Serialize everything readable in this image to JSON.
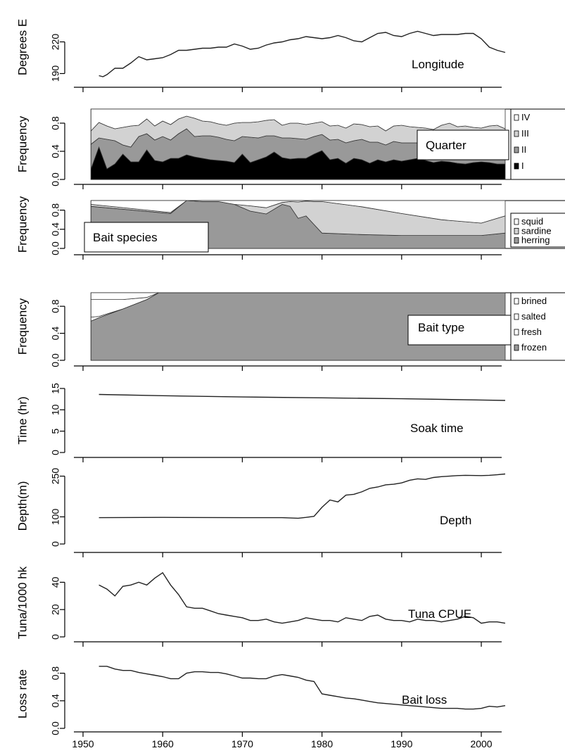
{
  "figure": {
    "x_ticks": [
      "1950",
      "1960",
      "1970",
      "1980",
      "1990",
      "2000"
    ]
  },
  "chart_data": [
    {
      "type": "line",
      "ylabel": "Degrees E",
      "inner_label": "Longitude",
      "ylim": [
        185,
        245
      ],
      "yticks": [
        190,
        220
      ],
      "ytick_labels": [
        "190",
        "220"
      ],
      "x": [
        1952,
        1952.5,
        1953,
        1954,
        1955,
        1956,
        1957,
        1958,
        1959,
        1960,
        1961,
        1962,
        1963,
        1964,
        1965,
        1966,
        1967,
        1968,
        1969,
        1970,
        1971,
        1972,
        1973,
        1974,
        1975,
        1976,
        1977,
        1978,
        1979,
        1980,
        1981,
        1982,
        1983,
        1984,
        1985,
        1986,
        1987,
        1988,
        1989,
        1990,
        1991,
        1992,
        1993,
        1994,
        1995,
        1996,
        1997,
        1998,
        1999,
        2000,
        2001,
        2002,
        2003
      ],
      "values": [
        188,
        187,
        189,
        195,
        195,
        200,
        206,
        203,
        204,
        205,
        208,
        212,
        212,
        213,
        214,
        214,
        215,
        215,
        218,
        216,
        213,
        214,
        217,
        219,
        220,
        222,
        223,
        225,
        224,
        223,
        224,
        226,
        224,
        221,
        220,
        224,
        228,
        229,
        226,
        225,
        228,
        230,
        228,
        226,
        227,
        227,
        227,
        228,
        228,
        223,
        215,
        212,
        210
      ]
    },
    {
      "type": "area",
      "stacked": true,
      "ylabel": "Frequency",
      "inner_label": "Quarter",
      "ylim": [
        0,
        1
      ],
      "yticks": [
        0,
        0.4,
        0.8
      ],
      "ytick_labels": [
        "0.0",
        "0.4",
        "0.8"
      ],
      "legend": [
        "IV",
        "III",
        "II",
        "I"
      ],
      "colors": [
        "#ffffff",
        "#d2d2d2",
        "#999999",
        "#000000"
      ],
      "x": [
        1951,
        1952,
        1953,
        1954,
        1955,
        1956,
        1957,
        1958,
        1959,
        1960,
        1961,
        1962,
        1963,
        1964,
        1965,
        1966,
        1967,
        1968,
        1969,
        1970,
        1971,
        1972,
        1973,
        1974,
        1975,
        1976,
        1977,
        1978,
        1979,
        1980,
        1981,
        1982,
        1983,
        1984,
        1985,
        1986,
        1987,
        1988,
        1989,
        1990,
        1991,
        1992,
        1993,
        1994,
        1995,
        1996,
        1997,
        1998,
        1999,
        2000,
        2001,
        2002,
        2003
      ],
      "series": [
        {
          "name": "I",
          "values": [
            0.15,
            0.46,
            0.15,
            0.22,
            0.36,
            0.25,
            0.25,
            0.42,
            0.27,
            0.25,
            0.3,
            0.3,
            0.35,
            0.32,
            0.3,
            0.28,
            0.27,
            0.26,
            0.24,
            0.36,
            0.24,
            0.28,
            0.32,
            0.39,
            0.31,
            0.29,
            0.3,
            0.3,
            0.36,
            0.41,
            0.28,
            0.3,
            0.23,
            0.3,
            0.28,
            0.23,
            0.28,
            0.25,
            0.28,
            0.26,
            0.28,
            0.3,
            0.27,
            0.24,
            0.26,
            0.25,
            0.23,
            0.22,
            0.24,
            0.25,
            0.24,
            0.22,
            0.22
          ]
        },
        {
          "name": "II",
          "values": [
            0.35,
            0.13,
            0.42,
            0.33,
            0.13,
            0.21,
            0.36,
            0.23,
            0.29,
            0.36,
            0.26,
            0.35,
            0.37,
            0.29,
            0.32,
            0.34,
            0.33,
            0.31,
            0.31,
            0.25,
            0.36,
            0.31,
            0.3,
            0.23,
            0.28,
            0.3,
            0.28,
            0.27,
            0.25,
            0.23,
            0.28,
            0.27,
            0.29,
            0.25,
            0.29,
            0.3,
            0.25,
            0.24,
            0.26,
            0.26,
            0.24,
            0.22,
            0.22,
            0.26,
            0.27,
            0.3,
            0.3,
            0.32,
            0.3,
            0.28,
            0.26,
            0.29,
            0.28
          ]
        },
        {
          "name": "III",
          "values": [
            0.19,
            0.22,
            0.19,
            0.17,
            0.25,
            0.3,
            0.16,
            0.21,
            0.2,
            0.22,
            0.22,
            0.21,
            0.18,
            0.26,
            0.21,
            0.2,
            0.19,
            0.2,
            0.25,
            0.2,
            0.21,
            0.23,
            0.22,
            0.23,
            0.18,
            0.21,
            0.22,
            0.21,
            0.19,
            0.18,
            0.2,
            0.2,
            0.21,
            0.24,
            0.21,
            0.22,
            0.23,
            0.2,
            0.22,
            0.25,
            0.23,
            0.22,
            0.24,
            0.21,
            0.24,
            0.25,
            0.22,
            0.22,
            0.2,
            0.2,
            0.26,
            0.26,
            0.22
          ]
        },
        {
          "name": "IV",
          "values": [
            0.31,
            0.19,
            0.24,
            0.28,
            0.26,
            0.24,
            0.23,
            0.14,
            0.24,
            0.17,
            0.22,
            0.14,
            0.1,
            0.13,
            0.17,
            0.18,
            0.21,
            0.23,
            0.2,
            0.19,
            0.19,
            0.18,
            0.16,
            0.15,
            0.23,
            0.2,
            0.2,
            0.22,
            0.2,
            0.18,
            0.24,
            0.23,
            0.27,
            0.21,
            0.22,
            0.25,
            0.24,
            0.31,
            0.24,
            0.23,
            0.25,
            0.26,
            0.27,
            0.29,
            0.23,
            0.2,
            0.25,
            0.24,
            0.26,
            0.27,
            0.24,
            0.23,
            0.28
          ]
        }
      ]
    },
    {
      "type": "area",
      "stacked": true,
      "ylabel": "Frequency",
      "inner_label": "Bait species",
      "ylim": [
        0,
        1
      ],
      "yticks": [
        0,
        0.4,
        0.8
      ],
      "ytick_labels": [
        "0.0",
        "0.4",
        "0.8"
      ],
      "legend": [
        "squid",
        "sardine",
        "herring"
      ],
      "colors": [
        "#ffffff",
        "#d2d2d2",
        "#999999"
      ],
      "x": [
        1951,
        1961,
        1963,
        1965,
        1967,
        1969,
        1971,
        1973,
        1975,
        1976,
        1977,
        1978,
        1979,
        1980,
        1985,
        1990,
        1995,
        2000,
        2003
      ],
      "series": [
        {
          "name": "herring",
          "values": [
            0.88,
            0.73,
            1.0,
            0.98,
            0.98,
            0.92,
            0.78,
            0.72,
            0.92,
            0.88,
            0.63,
            0.68,
            0.5,
            0.32,
            0.29,
            0.27,
            0.27,
            0.27,
            0.32
          ]
        },
        {
          "name": "sardine",
          "values": [
            0.04,
            0.02,
            0.0,
            0.0,
            0.0,
            0.0,
            0.11,
            0.13,
            0.04,
            0.1,
            0.34,
            0.31,
            0.48,
            0.66,
            0.58,
            0.46,
            0.33,
            0.26,
            0.36
          ]
        },
        {
          "name": "squid",
          "values": [
            0.08,
            0.25,
            0.0,
            0.02,
            0.02,
            0.08,
            0.11,
            0.15,
            0.04,
            0.02,
            0.03,
            0.01,
            0.02,
            0.02,
            0.13,
            0.27,
            0.4,
            0.47,
            0.32
          ]
        }
      ]
    },
    {
      "type": "area",
      "stacked": true,
      "ylabel": "Frequency",
      "inner_label": "Bait type",
      "ylim": [
        0,
        1
      ],
      "yticks": [
        0,
        0.4,
        0.8
      ],
      "ytick_labels": [
        "0.0",
        "0.4",
        "0.8"
      ],
      "legend": [
        "brined",
        "salted",
        "fresh",
        "frozen"
      ],
      "colors": [
        "#ffffff",
        "#ffffff",
        "#ffffff",
        "#999999"
      ],
      "x": [
        1951,
        1952,
        1955,
        1958,
        1959.5,
        1960,
        1970,
        1980,
        1990,
        2000,
        2003
      ],
      "series": [
        {
          "name": "frozen",
          "values": [
            0.58,
            0.63,
            0.76,
            0.9,
            1.0,
            1.0,
            1.0,
            1.0,
            1.0,
            1.0,
            1.0
          ]
        },
        {
          "name": "fresh",
          "values": [
            0.06,
            0.02,
            0.0,
            0.0,
            0.0,
            0.0,
            0.0,
            0.0,
            0.0,
            0.0,
            0.0
          ]
        },
        {
          "name": "salted",
          "values": [
            0.26,
            0.25,
            0.14,
            0.03,
            0.0,
            0.0,
            0.0,
            0.0,
            0.0,
            0.0,
            0.0
          ]
        },
        {
          "name": "brined",
          "values": [
            0.1,
            0.1,
            0.1,
            0.07,
            0.0,
            0.0,
            0.0,
            0.0,
            0.0,
            0.0,
            0.0
          ]
        }
      ]
    },
    {
      "type": "line",
      "ylabel": "Time (hr)",
      "inner_label": "Soak time",
      "ylim": [
        0,
        15
      ],
      "yticks": [
        0,
        5,
        10,
        15
      ],
      "ytick_labels": [
        "0",
        "5",
        "10",
        "15"
      ],
      "x": [
        1952,
        1960,
        1970,
        1980,
        1990,
        2000,
        2003
      ],
      "values": [
        13.6,
        13.3,
        13.0,
        12.8,
        12.6,
        12.3,
        12.2
      ]
    },
    {
      "type": "line",
      "ylabel": "Depth(m)",
      "inner_label": "Depth",
      "ylim": [
        0,
        280
      ],
      "yticks": [
        0,
        100,
        250
      ],
      "ytick_labels": [
        "0",
        "100",
        "250"
      ],
      "x": [
        1952,
        1960,
        1970,
        1975,
        1977,
        1978,
        1979,
        1980,
        1981,
        1982,
        1983,
        1984,
        1985,
        1986,
        1987,
        1988,
        1989,
        1990,
        1991,
        1992,
        1993,
        1994,
        1995,
        1996,
        1997,
        1998,
        2000,
        2001,
        2002,
        2003
      ],
      "values": [
        97,
        98,
        97,
        97,
        95,
        98,
        102,
        135,
        162,
        155,
        180,
        183,
        192,
        205,
        210,
        218,
        220,
        225,
        235,
        240,
        238,
        245,
        248,
        250,
        252,
        253,
        252,
        253,
        255,
        258
      ]
    },
    {
      "type": "line",
      "ylabel": "Tuna/1000 hk",
      "inner_label": "Tuna CPUE",
      "ylim": [
        0,
        50
      ],
      "yticks": [
        0,
        20,
        40
      ],
      "ytick_labels": [
        "0",
        "20",
        "40"
      ],
      "x": [
        1952,
        1953,
        1954,
        1955,
        1956,
        1957,
        1958,
        1959,
        1960,
        1961,
        1962,
        1963,
        1964,
        1965,
        1966,
        1967,
        1968,
        1969,
        1970,
        1971,
        1972,
        1973,
        1974,
        1975,
        1976,
        1977,
        1978,
        1979,
        1980,
        1981,
        1982,
        1983,
        1984,
        1985,
        1986,
        1987,
        1988,
        1989,
        1990,
        1991,
        1992,
        1993,
        1994,
        1995,
        1996,
        1997,
        1998,
        1999,
        2000,
        2001,
        2002,
        2003
      ],
      "values": [
        38,
        35,
        30,
        37,
        38,
        40,
        38,
        43,
        47,
        38,
        31,
        22,
        21,
        21,
        19,
        17,
        16,
        15,
        14,
        12,
        12,
        13,
        11,
        10,
        11,
        12,
        14,
        13,
        12,
        12,
        11,
        14,
        13,
        12,
        15,
        16,
        13,
        12,
        12,
        11,
        13,
        12,
        12,
        11,
        12,
        13,
        15,
        14,
        10,
        11,
        11,
        10
      ]
    },
    {
      "type": "line",
      "ylabel": "Loss rate",
      "inner_label": "Bait loss",
      "ylim": [
        0,
        1
      ],
      "yticks": [
        0,
        0.4,
        0.8
      ],
      "ytick_labels": [
        "0.0",
        "0.4",
        "0.8"
      ],
      "x": [
        1952,
        1953,
        1954,
        1955,
        1956,
        1957,
        1958,
        1959,
        1960,
        1961,
        1962,
        1963,
        1964,
        1965,
        1966,
        1967,
        1968,
        1969,
        1970,
        1971,
        1972,
        1973,
        1974,
        1975,
        1976,
        1977,
        1978,
        1979,
        1980,
        1981,
        1982,
        1983,
        1984,
        1985,
        1986,
        1987,
        1988,
        1989,
        1990,
        1991,
        1992,
        1993,
        1994,
        1995,
        1996,
        1997,
        1998,
        1999,
        2000,
        2001,
        2002,
        2003
      ],
      "values": [
        0.9,
        0.9,
        0.86,
        0.84,
        0.84,
        0.81,
        0.79,
        0.77,
        0.75,
        0.72,
        0.72,
        0.8,
        0.82,
        0.82,
        0.81,
        0.81,
        0.79,
        0.76,
        0.73,
        0.73,
        0.72,
        0.72,
        0.76,
        0.78,
        0.76,
        0.74,
        0.7,
        0.68,
        0.5,
        0.48,
        0.46,
        0.44,
        0.43,
        0.41,
        0.39,
        0.37,
        0.36,
        0.35,
        0.34,
        0.33,
        0.32,
        0.31,
        0.3,
        0.29,
        0.29,
        0.29,
        0.28,
        0.28,
        0.29,
        0.32,
        0.31,
        0.33
      ]
    }
  ]
}
